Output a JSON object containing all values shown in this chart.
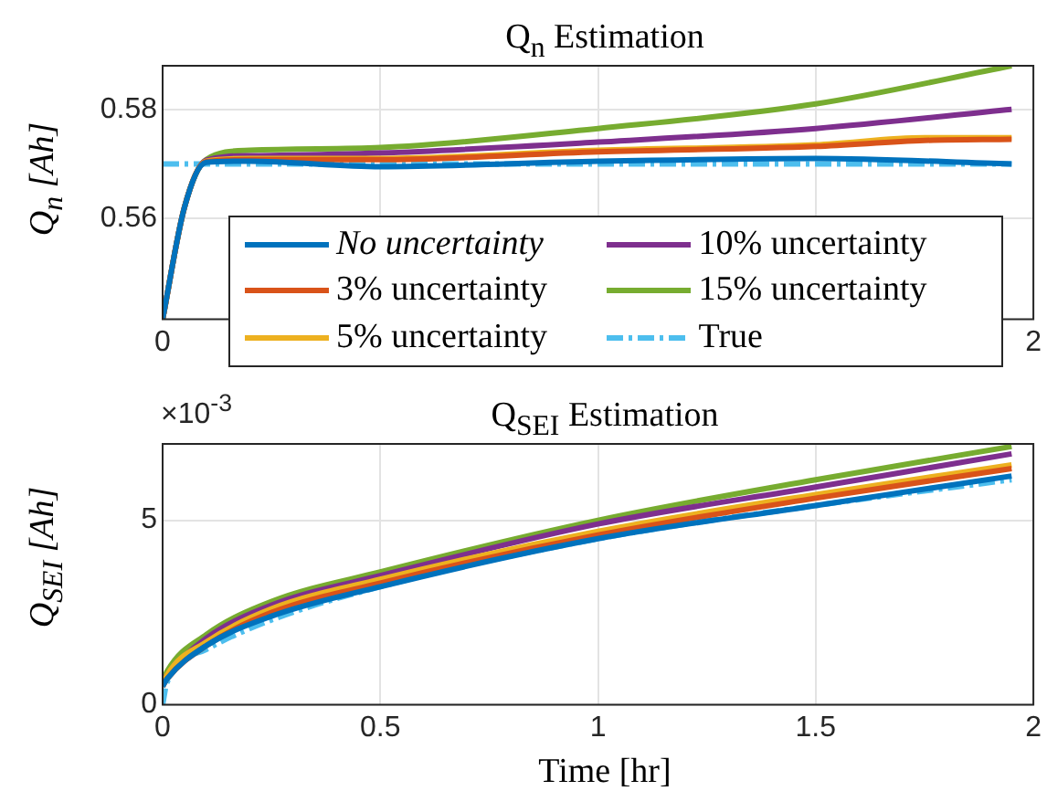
{
  "chart_data": [
    {
      "type": "line",
      "title": "Q$_{n}$ Estimation",
      "ylabel": "Q$_{n}$ [Ah]",
      "xlim": [
        0,
        2
      ],
      "ylim": [
        0.5415,
        0.588
      ],
      "xticks": [
        0,
        {
          "value": 0.5,
          "label": null
        },
        {
          "value": 1,
          "label": null
        },
        {
          "value": 1.5,
          "label": null
        },
        2
      ],
      "yticks": [
        0.56,
        0.58
      ],
      "grid": true,
      "legend": "bottom",
      "series": [
        {
          "name": "No uncertainty",
          "color": "#0072bd",
          "x": [
            0,
            0.05,
            0.1,
            0.2,
            0.5,
            1,
            1.5,
            1.95
          ],
          "values": [
            0.5415,
            0.562,
            0.5703,
            0.5705,
            0.5695,
            0.5705,
            0.571,
            0.57
          ]
        },
        {
          "name": "3% uncertainty",
          "color": "#d95319",
          "x": [
            0,
            0.05,
            0.1,
            0.2,
            0.5,
            1,
            1.5,
            1.75,
            1.95
          ],
          "values": [
            0.5415,
            0.562,
            0.5704,
            0.5708,
            0.5708,
            0.5722,
            0.5732,
            0.5743,
            0.5745
          ]
        },
        {
          "name": "5% uncertainty",
          "color": "#edb120",
          "x": [
            0,
            0.05,
            0.1,
            0.2,
            0.5,
            1,
            1.5,
            1.75,
            1.95
          ],
          "values": [
            0.5415,
            0.562,
            0.5705,
            0.571,
            0.571,
            0.5725,
            0.5735,
            0.5748,
            0.5748
          ]
        },
        {
          "name": "10% uncertainty",
          "color": "#7e2f8e",
          "x": [
            0,
            0.05,
            0.1,
            0.2,
            0.5,
            1,
            1.5,
            1.95
          ],
          "values": [
            0.5415,
            0.562,
            0.5707,
            0.5715,
            0.572,
            0.574,
            0.5765,
            0.58
          ]
        },
        {
          "name": "15% uncertainty",
          "color": "#77ac30",
          "x": [
            0,
            0.05,
            0.1,
            0.2,
            0.5,
            1,
            1.5,
            1.95
          ],
          "values": [
            0.5415,
            0.562,
            0.5708,
            0.5725,
            0.573,
            0.5765,
            0.581,
            0.588
          ]
        },
        {
          "name": "True",
          "color": "#4dbeee",
          "line_style": "dashed",
          "x": [
            0,
            1.95
          ],
          "values": [
            0.57,
            0.57
          ]
        }
      ]
    },
    {
      "type": "line",
      "title": "Q$_{SEI}$ Estimation",
      "xlabel": "Time [hr]",
      "ylabel": "Q$_{SEI}$ [Ah]",
      "annotations": [
        "×10$^{-3}$"
      ],
      "xlim": [
        0,
        2
      ],
      "ylim": [
        0,
        7.07
      ],
      "xticks": [
        0,
        0.5,
        1,
        1.5,
        2
      ],
      "yticks": [
        0,
        5
      ],
      "grid": true,
      "series": [
        {
          "color": "#0072bd",
          "x": [
            0,
            0.01,
            0.1,
            0.25,
            0.5,
            1,
            1.5,
            1.95
          ],
          "values": [
            0.5,
            0.7,
            1.6,
            2.4,
            3.2,
            4.5,
            5.4,
            6.2
          ]
        },
        {
          "color": "#d95319",
          "x": [
            0,
            0.01,
            0.1,
            0.25,
            0.5,
            1,
            1.5,
            1.95
          ],
          "values": [
            0.5,
            0.7,
            1.6,
            2.5,
            3.3,
            4.6,
            5.6,
            6.4
          ]
        },
        {
          "color": "#edb120",
          "x": [
            0,
            0.01,
            0.1,
            0.25,
            0.5,
            1,
            1.5,
            1.95
          ],
          "values": [
            0.5,
            0.8,
            1.7,
            2.6,
            3.4,
            4.7,
            5.7,
            6.5
          ]
        },
        {
          "color": "#7e2f8e",
          "x": [
            0,
            0.01,
            0.1,
            0.25,
            0.5,
            1,
            1.5,
            1.95
          ],
          "values": [
            0.6,
            0.8,
            1.8,
            2.7,
            3.5,
            4.9,
            5.9,
            6.8
          ]
        },
        {
          "color": "#77ac30",
          "x": [
            0,
            0.01,
            0.1,
            0.25,
            0.5,
            1,
            1.5,
            1.95
          ],
          "values": [
            0.6,
            0.9,
            1.9,
            2.8,
            3.6,
            5.0,
            6.1,
            7.0
          ]
        },
        {
          "color": "#4dbeee",
          "line_style": "dashed",
          "x": [
            0,
            0.01,
            0.1,
            0.25,
            0.5,
            1,
            1.5,
            1.95
          ],
          "values": [
            0,
            0.6,
            1.5,
            2.3,
            3.2,
            4.5,
            5.4,
            6.1
          ]
        }
      ]
    }
  ]
}
